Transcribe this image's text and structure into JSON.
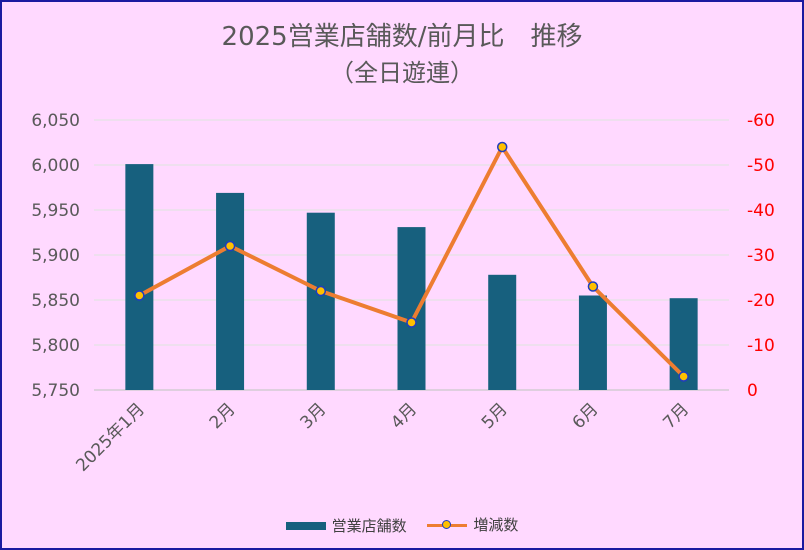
{
  "chart_data": {
    "type": "bar",
    "title": "2025営業店舗数/前月比　推移",
    "subtitle": "（全日遊連）",
    "categories": [
      "2025年1月",
      "2月",
      "3月",
      "4月",
      "5月",
      "6月",
      "7月"
    ],
    "series": [
      {
        "name": "営業店舗数",
        "type": "bar",
        "axis": "left",
        "color": "#17607e",
        "values": [
          6001,
          5969,
          5947,
          5931,
          5878,
          5855,
          5852
        ]
      },
      {
        "name": "増減数",
        "type": "line",
        "axis": "right",
        "color": "#ed7d31",
        "marker_color": "#ffc000",
        "marker_edge": "#1f3cc0",
        "values": [
          -21,
          -32,
          -22,
          -15,
          -54,
          -23,
          -3
        ]
      }
    ],
    "y_left": {
      "min": 5750,
      "max": 6050,
      "step": 50,
      "ticks": [
        "5,750",
        "5,800",
        "5,850",
        "5,900",
        "5,950",
        "6,000",
        "6,050"
      ],
      "color": "#595959"
    },
    "y_right": {
      "min": 0,
      "max": -60,
      "step": -10,
      "reversed": true,
      "ticks": [
        "0",
        "-10",
        "-20",
        "-30",
        "-40",
        "-50",
        "-60"
      ],
      "color": "#ff0000"
    },
    "grid": true,
    "legend_position": "bottom",
    "background": "#ffd9ff"
  }
}
